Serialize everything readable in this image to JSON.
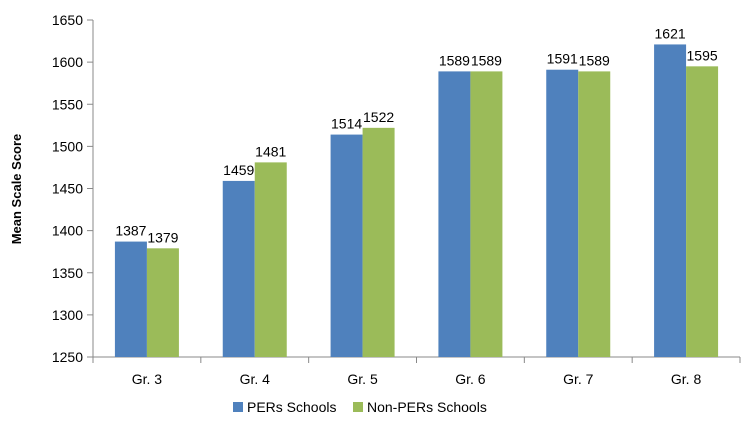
{
  "chart_data": {
    "type": "bar",
    "categories": [
      "Gr. 3",
      "Gr. 4",
      "Gr. 5",
      "Gr. 6",
      "Gr. 7",
      "Gr. 8"
    ],
    "series": [
      {
        "name": "PERs Schools",
        "color": "#4F81BD",
        "values": [
          1387,
          1459,
          1514,
          1589,
          1591,
          1621
        ]
      },
      {
        "name": "Non-PERs Schools",
        "color": "#9BBB59",
        "values": [
          1379,
          1481,
          1522,
          1589,
          1589,
          1595
        ]
      }
    ],
    "data_labels": [
      [
        "1387",
        "1459",
        "1514",
        "1589",
        "1591",
        "1621"
      ],
      [
        "1379",
        "1481",
        "1522",
        "1589",
        "1589",
        "1595"
      ]
    ],
    "title": "",
    "xlabel": "",
    "ylabel": "Mean Scale Score",
    "ylim": [
      1250,
      1650
    ],
    "yticks": [
      1250,
      1300,
      1350,
      1400,
      1450,
      1500,
      1550,
      1600,
      1650
    ],
    "ytick_labels": [
      "1250",
      "1300",
      "1350",
      "1400",
      "1450",
      "1500",
      "1550",
      "1600",
      "1650"
    ],
    "grid": false,
    "legend_position": "bottom"
  }
}
